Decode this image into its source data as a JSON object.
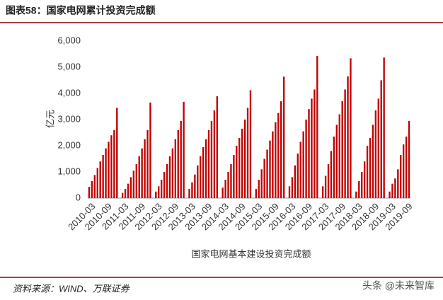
{
  "chart_data": {
    "type": "bar",
    "title": "图表58：国家电网累计投资完成额",
    "y_axis_label": "亿元",
    "x_axis_label": "国家电网基本建设投资完成额",
    "source": "资料来源：WIND、万联证券",
    "watermark": "头条 @未来智库",
    "color": "#c00000",
    "categories": [
      null,
      "2010-03",
      null,
      null,
      null,
      null,
      null,
      "2010-09",
      null,
      null,
      null,
      null,
      null,
      "2011-03",
      null,
      null,
      null,
      null,
      null,
      "2011-09",
      null,
      null,
      null,
      null,
      null,
      "2012-03",
      null,
      null,
      null,
      null,
      null,
      "2012-09",
      null,
      null,
      null,
      null,
      null,
      "2013-03",
      null,
      null,
      null,
      null,
      null,
      "2013-09",
      null,
      null,
      null,
      null,
      null,
      "2014-03",
      null,
      null,
      null,
      null,
      null,
      "2014-09",
      null,
      null,
      null,
      null,
      null,
      "2015-03",
      null,
      null,
      null,
      null,
      null,
      "2015-09",
      null,
      null,
      null,
      null,
      null,
      "2016-03",
      null,
      null,
      null,
      null,
      null,
      "2016-09",
      null,
      null,
      null,
      null,
      null,
      "2017-03",
      null,
      null,
      null,
      null,
      null,
      "2017-09",
      null,
      null,
      null,
      null,
      null,
      "2018-03",
      null,
      null,
      null,
      null,
      null,
      "2018-09",
      null,
      null,
      null,
      null,
      null,
      "2019-03",
      null,
      null,
      null,
      null,
      null,
      "2019-09"
    ],
    "values": [
      430,
      650,
      880,
      1150,
      1400,
      1650,
      1900,
      2150,
      2400,
      2600,
      3450,
      null,
      200,
      350,
      550,
      800,
      1050,
      1300,
      1600,
      1900,
      2250,
      2600,
      3650,
      null,
      250,
      450,
      700,
      1000,
      1300,
      1600,
      1900,
      2250,
      2600,
      2950,
      3680,
      null,
      350,
      600,
      900,
      1250,
      1600,
      1950,
      2250,
      2600,
      2950,
      3350,
      3890,
      null,
      400,
      700,
      1000,
      1300,
      1650,
      2000,
      2300,
      2650,
      3000,
      3450,
      4120,
      null,
      350,
      700,
      1100,
      1500,
      1850,
      2200,
      2550,
      2900,
      3250,
      3700,
      4640,
      null,
      450,
      800,
      1250,
      1700,
      2150,
      2550,
      3000,
      3400,
      3800,
      4150,
      5430,
      null,
      450,
      850,
      1300,
      1800,
      2350,
      2800,
      3200,
      3700,
      4150,
      4650,
      5340,
      null,
      250,
      650,
      1000,
      1400,
      2000,
      2300,
      2800,
      3350,
      3800,
      4500,
      5370,
      null,
      250,
      550,
      750,
      1100,
      1650,
      2050,
      2350,
      2950
    ],
    "ylim": [
      0,
      6000
    ],
    "yticks": [
      0,
      {
        "value": 1000,
        "label": "1,000"
      },
      {
        "value": 2000,
        "label": "2,000"
      },
      {
        "value": 3000,
        "label": "3,000"
      },
      {
        "value": 4000,
        "label": "4,000"
      },
      {
        "value": 5000,
        "label": "5,000"
      },
      {
        "value": 6000,
        "label": "6,000"
      }
    ],
    "grid": false
  }
}
